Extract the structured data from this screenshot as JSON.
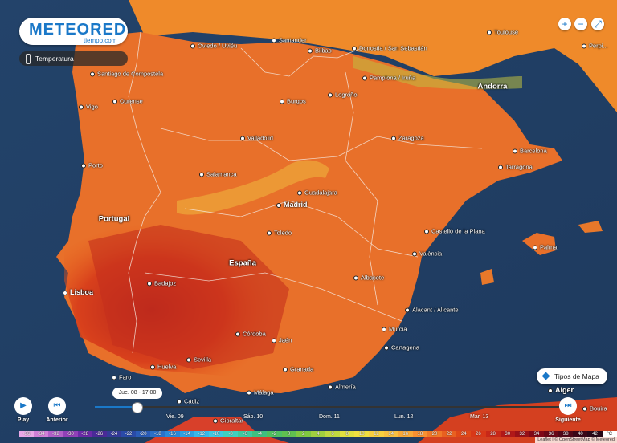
{
  "brand": {
    "name": "METEORED",
    "sub": "tiempo.com"
  },
  "layer": {
    "label": "Temperatura",
    "icon": "thermometer-icon"
  },
  "zoom": {
    "in": "+",
    "out": "−",
    "fullscreen": "⤢"
  },
  "map_type": {
    "label": "Tipos de Mapa",
    "icon": "layers-icon"
  },
  "player": {
    "play_label": "Play",
    "prev_label": "Anterior",
    "next_label": "Siguiente",
    "current_time": "Jue. 08 - 17:00",
    "progress": 0.09,
    "days": [
      "Vie. 09",
      "Sáb. 10",
      "Dom. 11",
      "Lun. 12",
      "Mar. 13"
    ]
  },
  "countries": [
    "Portugal",
    "España",
    "Andorra"
  ],
  "cities": [
    "Oviedo / Uviéu",
    "Santander",
    "Bilbao",
    "Donostia / San Sebastián",
    "Toulouse",
    "Santiago de Compostela",
    "Pamplona / Iruña",
    "Vigo",
    "Ourense",
    "Burgos",
    "Logroño",
    "Perpi...",
    "Valladolid",
    "Zaragoza",
    "Barcelona",
    "Porto",
    "Salamanca",
    "Tarragona",
    "Guadalajara",
    "Madrid",
    "Castelló de la Plana",
    "Palma",
    "Toledo",
    "València",
    "Badajoz",
    "Albacete",
    "Lisboa",
    "Alacant / Alicante",
    "Córdoba",
    "Murcia",
    "Jaén",
    "Cartagena",
    "Sevilla",
    "Granada",
    "Faro",
    "Huelva",
    "Almería",
    "Málaga",
    "Cádiz",
    "Gibraltar",
    "Alger",
    "Bouira"
  ],
  "legend": {
    "unit": "°C",
    "values": [
      "-36",
      "-34",
      "-32",
      "-30",
      "-28",
      "-26",
      "-24",
      "-22",
      "-20",
      "-18",
      "-16",
      "-14",
      "-12",
      "-10",
      "-8",
      "-6",
      "-4",
      "-2",
      "0",
      "2",
      "4",
      "6",
      "8",
      "10",
      "12",
      "14",
      "16",
      "18",
      "20",
      "22",
      "24",
      "26",
      "28",
      "30",
      "32",
      "34",
      "36",
      "38",
      "40",
      "42"
    ],
    "colors": [
      "#e8a8e8",
      "#d080d8",
      "#b060c8",
      "#9040b8",
      "#6a2aa8",
      "#4a2a98",
      "#343a98",
      "#2a4aa8",
      "#2a5cb8",
      "#2a70c8",
      "#2a88d8",
      "#30a0e0",
      "#38b8e8",
      "#40c8e0",
      "#40d0c0",
      "#40c8a0",
      "#40c080",
      "#50c060",
      "#60c050",
      "#80c840",
      "#a0d040",
      "#c0d840",
      "#e0e040",
      "#f0e040",
      "#f8d040",
      "#f8c040",
      "#f8a838",
      "#f89030",
      "#f07828",
      "#e86020",
      "#e04818",
      "#d83818",
      "#c82818",
      "#b01818",
      "#981018",
      "#800818",
      "#680818",
      "#500818",
      "#3a0818",
      "#280818"
    ]
  },
  "attribution": "Leaflet | © OpenStreetMap © Meteored"
}
